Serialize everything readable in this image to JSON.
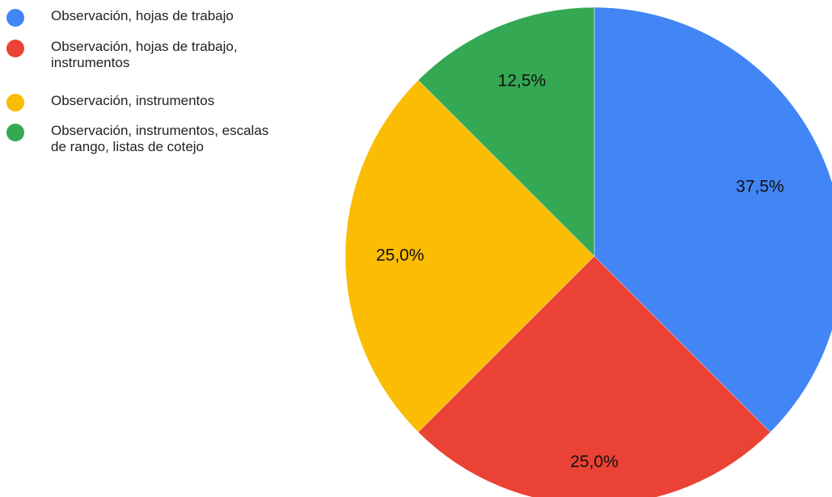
{
  "chart_data": {
    "type": "pie",
    "title": "",
    "categories": [
      "Observación, hojas de trabajo",
      "Observación, hojas de trabajo, instrumentos",
      "Observación, instrumentos",
      "Observación, instrumentos, escalas de rango, listas de cotejo"
    ],
    "values": [
      37.5,
      25.0,
      25.0,
      12.5
    ],
    "data_labels": [
      "37,5%",
      "25,0%",
      "25,0%",
      "12,5%"
    ],
    "colors": [
      "#4285f4",
      "#ea4335",
      "#fbbc04",
      "#34a853"
    ],
    "legend_position": "top-left",
    "start_angle": "12 o'clock",
    "direction": "clockwise"
  },
  "legend": {
    "items": [
      {
        "label_lines": [
          "Observación, hojas de trabajo"
        ]
      },
      {
        "label_lines": [
          "Observación, hojas de trabajo,",
          "instrumentos"
        ]
      },
      {
        "label_lines": [
          "Observación, instrumentos"
        ]
      },
      {
        "label_lines": [
          "Observación, instrumentos, escalas",
          "de rango, listas de cotejo"
        ]
      }
    ]
  }
}
